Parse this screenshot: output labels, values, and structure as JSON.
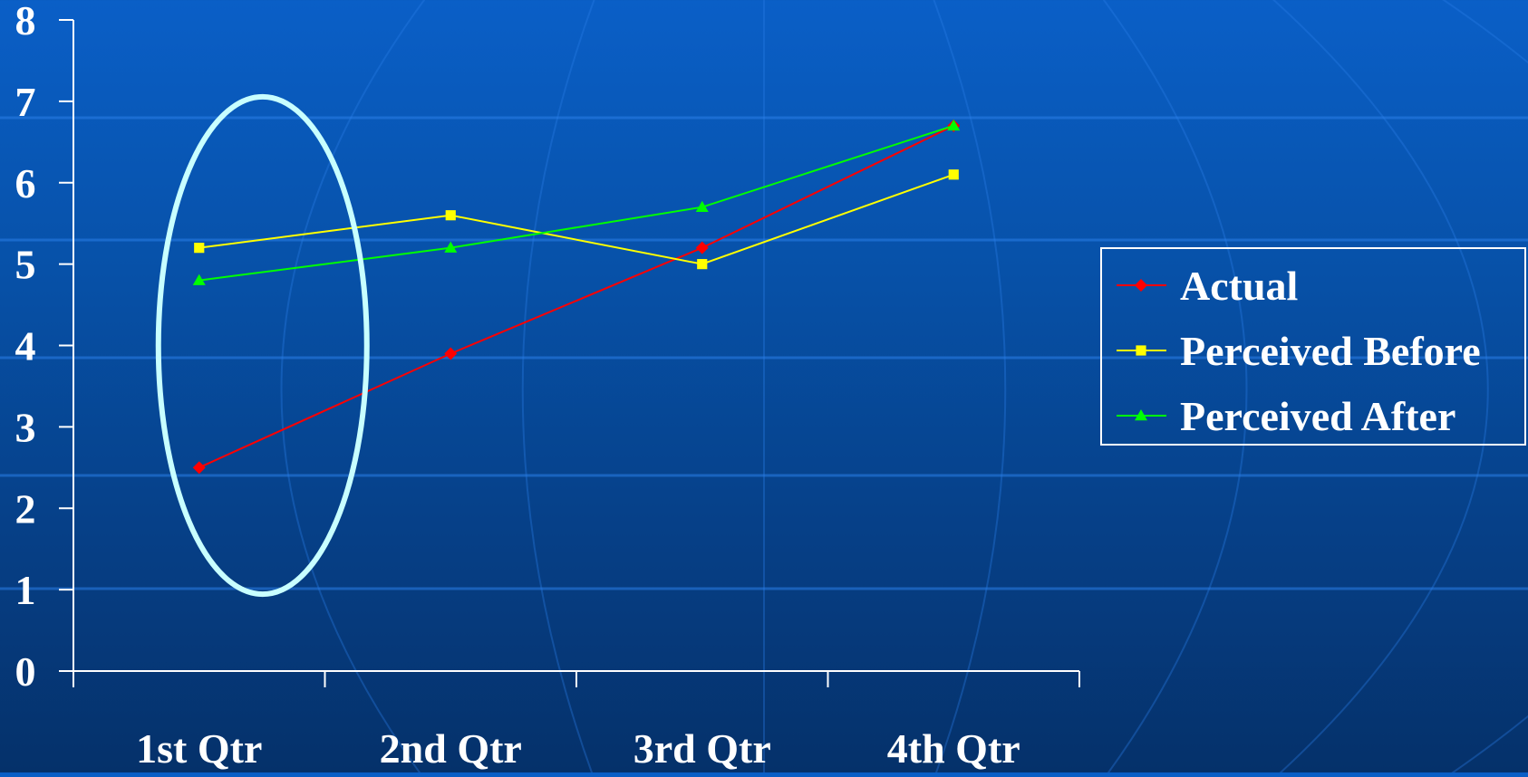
{
  "colors": {
    "axis": "#ffffff",
    "highlight_ellipse": "#c8ffff",
    "legend_border": "#ffffff"
  },
  "chart_data": {
    "type": "line",
    "title": "",
    "xlabel": "",
    "ylabel": "",
    "categories": [
      "1st Qtr",
      "2nd Qtr",
      "3rd Qtr",
      "4th Qtr"
    ],
    "ylim": [
      0,
      8
    ],
    "yticks": [
      "0",
      "1",
      "2",
      "3",
      "4",
      "5",
      "6",
      "7",
      "8"
    ],
    "grid": false,
    "legend_position": "right",
    "series": [
      {
        "name": "Actual",
        "values": [
          2.5,
          3.9,
          5.2,
          6.7
        ],
        "color": "#ff0000",
        "marker": "diamond"
      },
      {
        "name": "Perceived Before",
        "values": [
          5.2,
          5.6,
          5.0,
          6.1
        ],
        "color": "#ffff00",
        "marker": "square"
      },
      {
        "name": "Perceived After",
        "values": [
          4.8,
          5.2,
          5.7,
          6.7
        ],
        "color": "#00ff00",
        "marker": "triangle"
      }
    ],
    "annotations": [
      {
        "type": "ellipse",
        "around_category": "1st Qtr"
      }
    ]
  }
}
